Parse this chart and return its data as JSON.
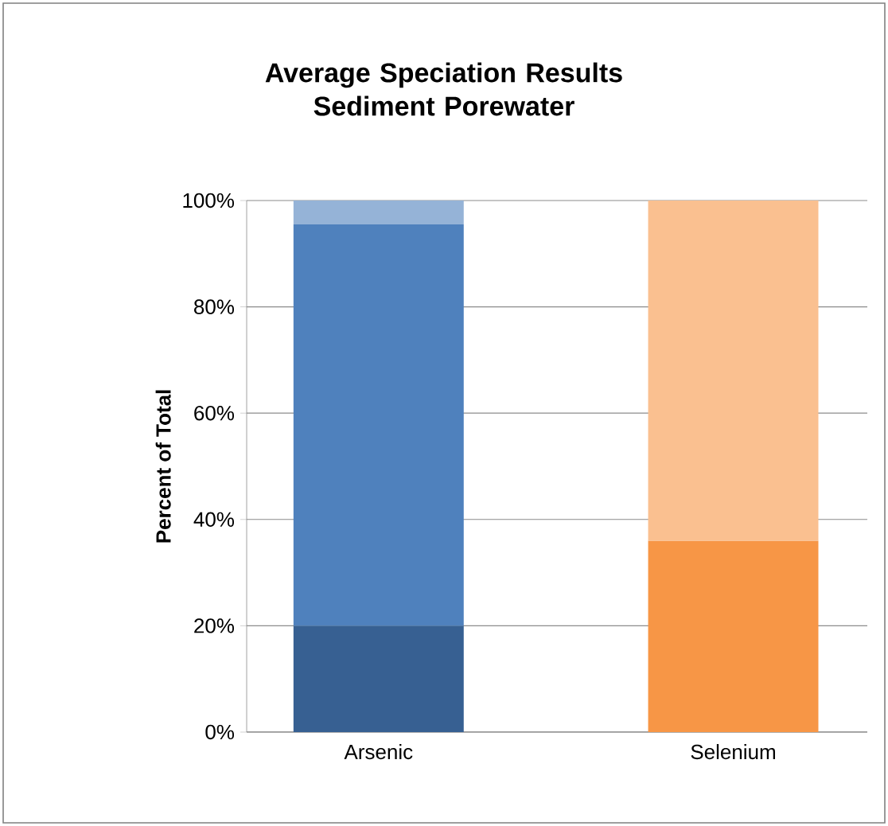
{
  "chart_data": {
    "type": "bar",
    "stacked": true,
    "title": "Average Speciation Results Sediment Porewater",
    "ylabel": "Percent of Total",
    "categories": [
      "Arsenic",
      "Selenium"
    ],
    "series": [
      {
        "colors": [
          "#376092",
          "#f79646"
        ],
        "values": [
          20,
          36
        ]
      },
      {
        "colors": [
          "#4f81bd",
          "#fac090"
        ],
        "values": [
          75.5,
          64
        ]
      },
      {
        "colors": [
          "#95b3d7",
          null
        ],
        "values": [
          4.5,
          null
        ]
      }
    ],
    "ylim": [
      0,
      100
    ],
    "yticks": [
      {
        "value": 0,
        "label": "0%"
      },
      {
        "value": 20,
        "label": "20%"
      },
      {
        "value": 40,
        "label": "40%"
      },
      {
        "value": 60,
        "label": "60%"
      },
      {
        "value": 80,
        "label": "80%"
      },
      {
        "value": 100,
        "label": "100%"
      }
    ],
    "grid": "y"
  }
}
